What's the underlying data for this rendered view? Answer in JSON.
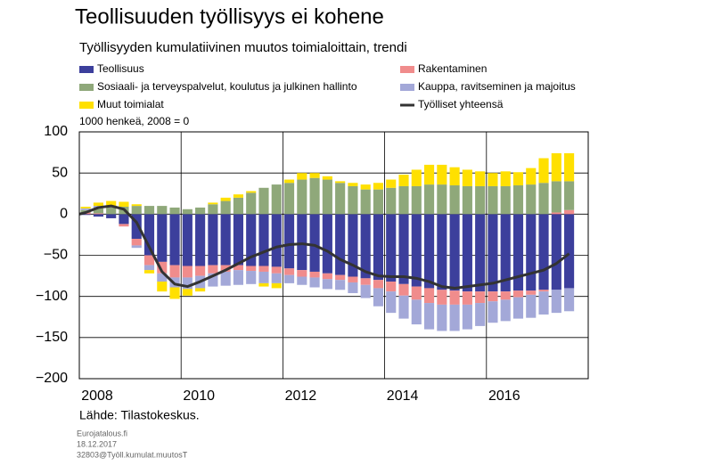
{
  "chart_data": {
    "type": "bar",
    "title": "Teollisuuden työllisyys ei kohene",
    "subtitle": "Työllisyyden kumulatiivinen muutos toimialoittain, trendi",
    "y_label": "1000 henkeä, 2008 = 0",
    "source": "Lähde: Tilastokeskus.",
    "footer": [
      "Eurojatalous.fi",
      "18.12.2017",
      "32803@Työll.kumulat.muutosT"
    ],
    "stacked": true,
    "xlim": [
      2008,
      2018
    ],
    "xticks": [
      2008,
      2010,
      2012,
      2014,
      2016
    ],
    "ylim": [
      -200,
      100
    ],
    "yticks": [
      {
        "value": -200,
        "label": "−200"
      },
      {
        "value": -150,
        "label": "−150"
      },
      {
        "value": -100,
        "label": "−100"
      },
      {
        "value": -50,
        "label": "−50"
      },
      0,
      50,
      100
    ],
    "grid": true,
    "x": [
      2008.125,
      2008.375,
      2008.625,
      2008.875,
      2009.125,
      2009.375,
      2009.625,
      2009.875,
      2010.125,
      2010.375,
      2010.625,
      2010.875,
      2011.125,
      2011.375,
      2011.625,
      2011.875,
      2012.125,
      2012.375,
      2012.625,
      2012.875,
      2013.125,
      2013.375,
      2013.625,
      2013.875,
      2014.125,
      2014.375,
      2014.625,
      2014.875,
      2015.125,
      2015.375,
      2015.625,
      2015.875,
      2016.125,
      2016.375,
      2016.625,
      2016.875,
      2017.125,
      2017.375,
      2017.625
    ],
    "series": [
      {
        "name": "Teollisuus",
        "color": "#3c3f9c",
        "values": [
          -1,
          -3,
          -5,
          -12,
          -30,
          -50,
          -58,
          -62,
          -63,
          -63,
          -62,
          -62,
          -62,
          -63,
          -63,
          -64,
          -66,
          -68,
          -70,
          -72,
          -74,
          -76,
          -78,
          -80,
          -82,
          -85,
          -88,
          -90,
          -92,
          -93,
          -94,
          -94,
          -94,
          -94,
          -93,
          -93,
          -92,
          -92,
          -90
        ]
      },
      {
        "name": "Rakentaminen",
        "color": "#f08c8c",
        "values": [
          2,
          1,
          0,
          -3,
          -8,
          -12,
          -14,
          -15,
          -14,
          -12,
          -10,
          -8,
          -6,
          -6,
          -7,
          -8,
          -8,
          -8,
          -7,
          -7,
          -6,
          -7,
          -8,
          -10,
          -12,
          -14,
          -16,
          -18,
          -18,
          -17,
          -16,
          -14,
          -12,
          -10,
          -8,
          -5,
          -2,
          2,
          5
        ]
      },
      {
        "name": "Sosiaali- ja terveyspalvelut, koulutus ja julkinen hallinto",
        "color": "#8fa87a",
        "values": [
          3,
          6,
          8,
          9,
          10,
          10,
          10,
          8,
          6,
          8,
          12,
          16,
          20,
          26,
          32,
          36,
          38,
          42,
          44,
          42,
          38,
          34,
          30,
          30,
          32,
          34,
          34,
          36,
          36,
          35,
          34,
          34,
          34,
          34,
          35,
          36,
          38,
          38,
          35
        ]
      },
      {
        "name": "Kauppa, ravitseminen ja majoitus",
        "color": "#a3a8d8",
        "values": [
          2,
          3,
          2,
          0,
          -3,
          -6,
          -10,
          -12,
          -14,
          -15,
          -16,
          -17,
          -18,
          -16,
          -14,
          -12,
          -10,
          -10,
          -12,
          -12,
          -12,
          -13,
          -16,
          -22,
          -26,
          -28,
          -30,
          -32,
          -32,
          -32,
          -30,
          -28,
          -26,
          -26,
          -26,
          -28,
          -28,
          -28,
          -28
        ]
      },
      {
        "name": "Muut toimialat",
        "color": "#ffe000",
        "values": [
          2,
          4,
          6,
          6,
          2,
          -4,
          -12,
          -14,
          -8,
          -4,
          2,
          4,
          4,
          2,
          -4,
          -6,
          4,
          8,
          6,
          4,
          2,
          4,
          6,
          8,
          10,
          14,
          20,
          24,
          24,
          22,
          20,
          18,
          16,
          18,
          16,
          20,
          30,
          34,
          34
        ]
      },
      {
        "name": "Työlliset yhteensä",
        "color": "#333333",
        "type": "line",
        "values": [
          2,
          8,
          10,
          6,
          -10,
          -40,
          -70,
          -85,
          -88,
          -82,
          -75,
          -68,
          -60,
          -52,
          -46,
          -40,
          -37,
          -36,
          -38,
          -45,
          -55,
          -62,
          -70,
          -75,
          -76,
          -76,
          -78,
          -82,
          -88,
          -90,
          -88,
          -86,
          -84,
          -80,
          -76,
          -72,
          -68,
          -60,
          -48
        ]
      }
    ]
  }
}
